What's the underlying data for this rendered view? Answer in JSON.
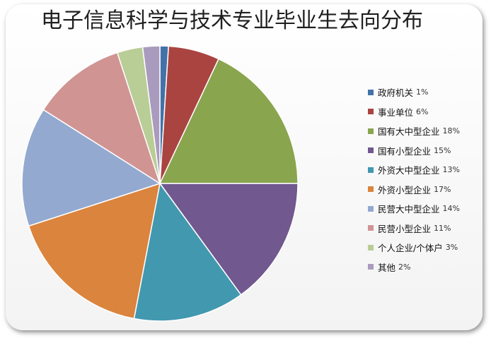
{
  "chart_data": {
    "type": "pie",
    "title": "电子信息科学与技术专业毕业生去向分布",
    "legend_position": "right",
    "slices": [
      {
        "label": "政府机关",
        "value": 1,
        "display": "1%",
        "color": "#4472a8"
      },
      {
        "label": "事业单位",
        "value": 6,
        "display": "6%",
        "color": "#aa4441"
      },
      {
        "label": "国有大中型企业",
        "value": 18,
        "display": "18%",
        "color": "#89a54e"
      },
      {
        "label": "国有小型企业",
        "value": 15,
        "display": "15%",
        "color": "#71588f"
      },
      {
        "label": "外资大中型企业",
        "value": 13,
        "display": "13%",
        "color": "#4298af"
      },
      {
        "label": "外资小型企业",
        "value": 17,
        "display": "17%",
        "color": "#db843d"
      },
      {
        "label": "民营大中型企业",
        "value": 14,
        "display": "14%",
        "color": "#93a9d0"
      },
      {
        "label": "民营小型企业",
        "value": 11,
        "display": "11%",
        "color": "#d09493"
      },
      {
        "label": "个人企业/个体户",
        "value": 3,
        "display": "3%",
        "color": "#b9cd96"
      },
      {
        "label": "其他",
        "value": 2,
        "display": "2%",
        "color": "#a99bbd"
      }
    ]
  }
}
